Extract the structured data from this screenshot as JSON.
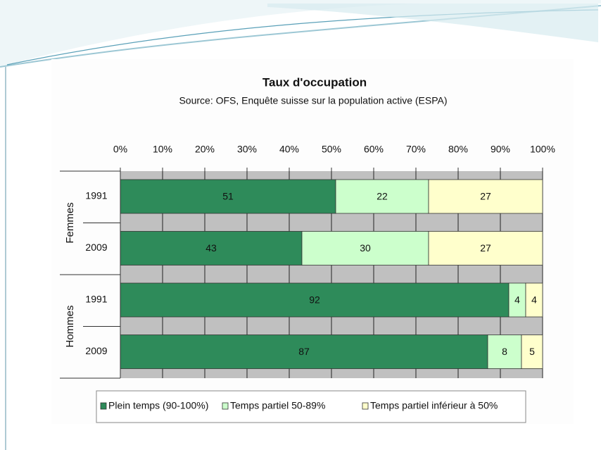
{
  "chart_data": {
    "type": "stacked_bar_horizontal",
    "title": "Taux d'occupation",
    "subtitle": "Source: OFS, Enquête suisse sur la population active (ESPA)",
    "groups": [
      "Femmes",
      "Femmes",
      "Hommes",
      "Hommes"
    ],
    "categories": [
      "1991",
      "2009",
      "1991",
      "2009"
    ],
    "series": [
      {
        "name": "Plein temps (90-100%)",
        "color": "#2e8b5a",
        "values": [
          51,
          43,
          92,
          87
        ]
      },
      {
        "name": "Temps partiel 50-89%",
        "color": "#ccffcc",
        "values": [
          22,
          30,
          4,
          8
        ]
      },
      {
        "name": "Temps partiel inférieur à 50%",
        "color": "#ffffcc",
        "values": [
          27,
          27,
          4,
          5
        ]
      }
    ],
    "xlim": [
      0,
      100
    ],
    "xticks": [
      {
        "value": 0,
        "label": "0%"
      },
      {
        "value": 10,
        "label": "10%"
      },
      {
        "value": 20,
        "label": "20%"
      },
      {
        "value": 30,
        "label": "30%"
      },
      {
        "value": 40,
        "label": "40%"
      },
      {
        "value": 50,
        "label": "50%"
      },
      {
        "value": 60,
        "label": "60%"
      },
      {
        "value": 70,
        "label": "70%"
      },
      {
        "value": 80,
        "label": "80%"
      },
      {
        "value": 90,
        "label": "90%"
      },
      {
        "value": 100,
        "label": "100%"
      }
    ],
    "grid": true,
    "legend": "bottom"
  }
}
